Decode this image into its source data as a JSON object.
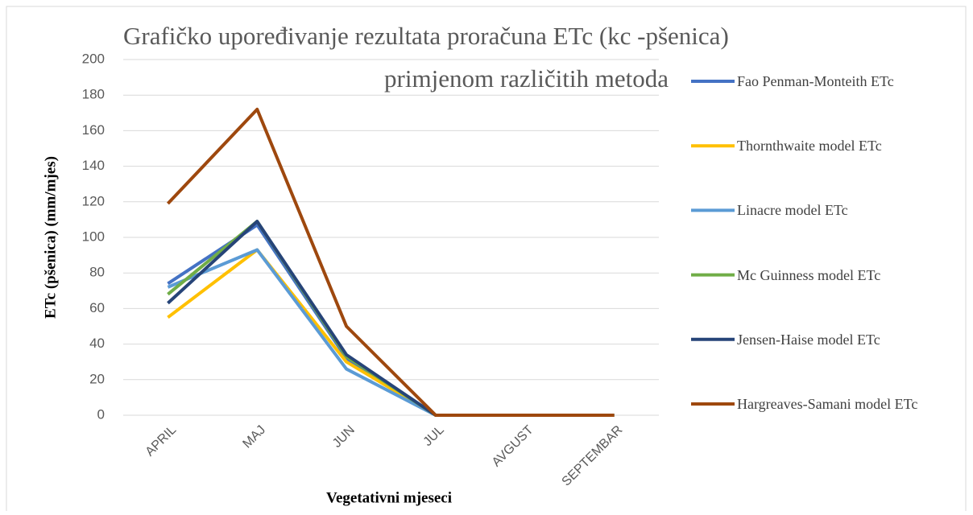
{
  "chart_data": {
    "type": "line",
    "title": [
      "Grafičko upoređivanje rezultata proračuna ETc (kc -pšenica)",
      "primjenom različitih metoda"
    ],
    "x_label": "Vegetativni mjeseci",
    "y_label": "ETc (pšenica) (mm/mjes)",
    "categories": [
      "APRIL",
      "MAJ",
      "JUN",
      "JUL",
      "AVGUST",
      "SEPTEMBAR"
    ],
    "ylim": [
      0,
      200
    ],
    "yticks": [
      0,
      20,
      40,
      60,
      80,
      100,
      120,
      140,
      160,
      180,
      200
    ],
    "grid": true,
    "legend": "right",
    "series": [
      {
        "name": "Fao Penman-Monteith ETc",
        "color": "#4472c4",
        "values": [
          74,
          107,
          32,
          0,
          0,
          0
        ]
      },
      {
        "name": "Thornthwaite model ETc",
        "color": "#ffc000",
        "values": [
          55,
          93,
          30,
          0,
          0,
          0
        ]
      },
      {
        "name": "Linacre model ETc",
        "color": "#5b9bd5",
        "values": [
          72,
          93,
          26,
          0,
          0,
          0
        ]
      },
      {
        "name": "Mc Guinness model ETc",
        "color": "#70ad47",
        "values": [
          68,
          109,
          33,
          0,
          0,
          0
        ]
      },
      {
        "name": "Jensen-Haise model ETc",
        "color": "#264478",
        "values": [
          63,
          109,
          34,
          0,
          0,
          0
        ]
      },
      {
        "name": "Hargreaves-Samani model ETc",
        "color": "#9e480e",
        "values": [
          119,
          172,
          50,
          0,
          0,
          0
        ]
      }
    ]
  }
}
